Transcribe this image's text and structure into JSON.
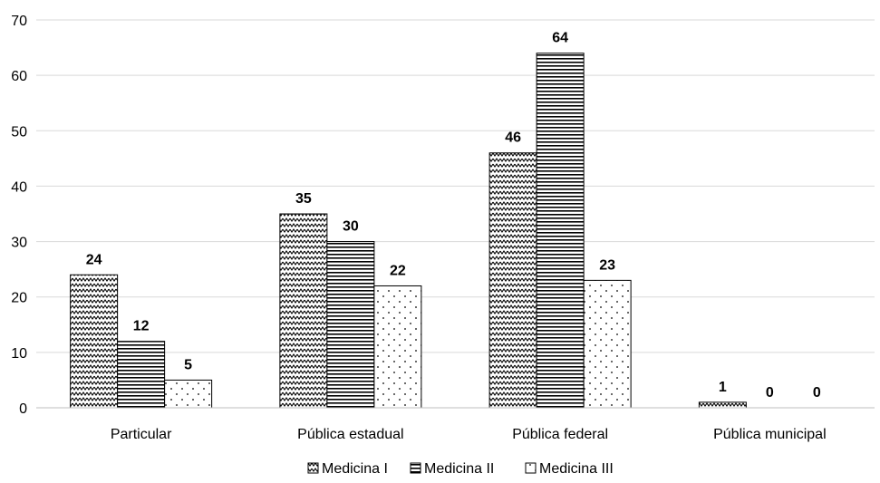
{
  "chart_data": {
    "type": "bar",
    "categories": [
      "Particular",
      "Pública estadual",
      "Pública federal",
      "Pública municipal"
    ],
    "series": [
      {
        "name": "Medicina I",
        "values": [
          24,
          35,
          46,
          1
        ],
        "pattern": "zigzag"
      },
      {
        "name": "Medicina II",
        "values": [
          12,
          30,
          64,
          0
        ],
        "pattern": "horizontal-lines"
      },
      {
        "name": "Medicina III",
        "values": [
          5,
          22,
          23,
          0
        ],
        "pattern": "dots"
      }
    ],
    "ylim": [
      0,
      70
    ],
    "yticks": [
      0,
      10,
      20,
      30,
      40,
      50,
      60,
      70
    ],
    "grid": true,
    "legend_position": "bottom",
    "title": "",
    "xlabel": "",
    "ylabel": ""
  }
}
